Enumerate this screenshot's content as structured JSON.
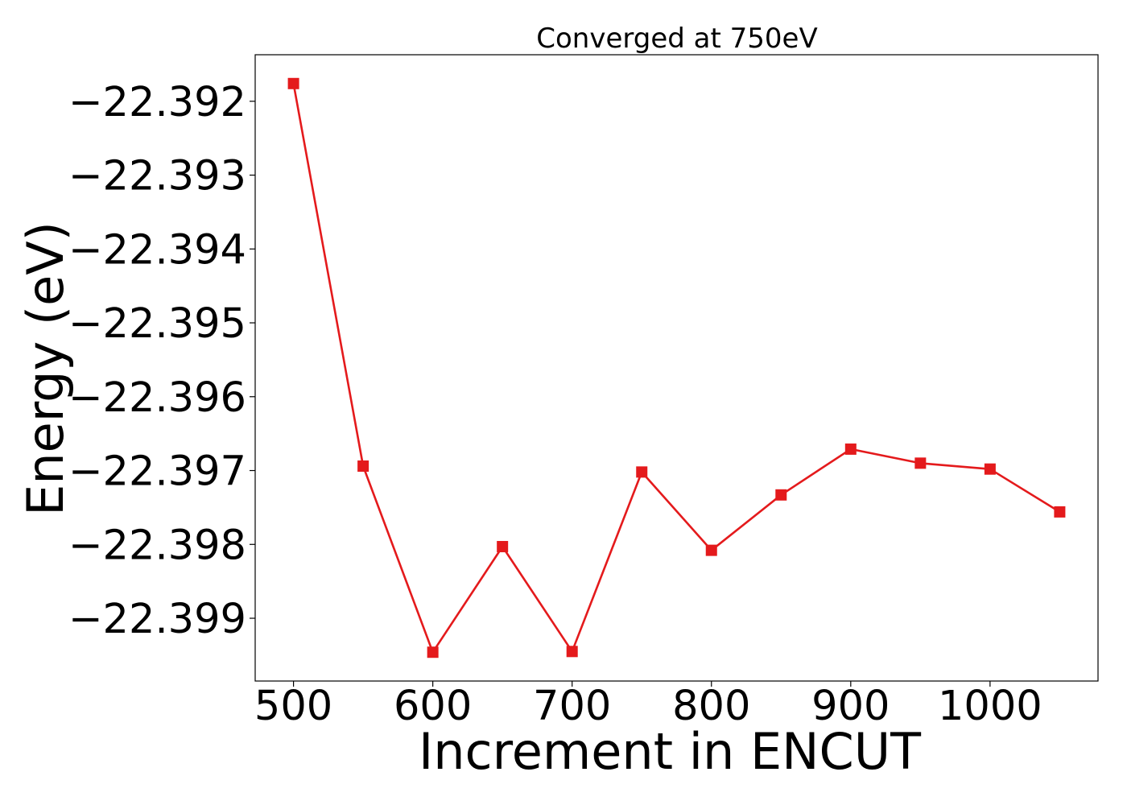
{
  "chart_data": {
    "type": "line",
    "title": "Converged at 750eV",
    "xlabel": "Increment in ENCUT",
    "ylabel": "Energy (eV)",
    "x": [
      500,
      550,
      600,
      650,
      700,
      750,
      800,
      850,
      900,
      950,
      1000,
      1050
    ],
    "series": [
      {
        "color": "#e41a1c",
        "marker": "square",
        "values": [
          -22.39176,
          -22.39694,
          -22.39946,
          -22.39803,
          -22.39945,
          -22.39702,
          -22.39808,
          -22.39733,
          -22.39671,
          -22.3969,
          -22.39698,
          -22.39756
        ]
      }
    ],
    "xlim": [
      472.5,
      1077.5
    ],
    "ylim": [
      -22.39985,
      -22.39137
    ],
    "xticks": [
      500,
      600,
      700,
      800,
      900,
      1000
    ],
    "xtick_labels": [
      "500",
      "600",
      "700",
      "800",
      "900",
      "1000"
    ],
    "yticks": [
      -22.392,
      -22.393,
      -22.394,
      -22.395,
      -22.396,
      -22.397,
      -22.398,
      -22.399
    ],
    "ytick_labels": [
      "−22.392",
      "−22.393",
      "−22.394",
      "−22.395",
      "−22.396",
      "−22.397",
      "−22.398",
      "−22.399"
    ],
    "grid": false,
    "legend": "none"
  }
}
